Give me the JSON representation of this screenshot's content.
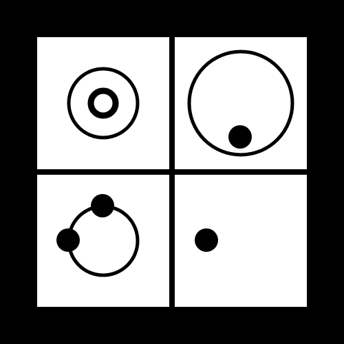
{
  "colors": {
    "background": "#000000",
    "panel": "#ffffff",
    "ink": "#000000"
  },
  "panels": [
    {
      "name": "panel-top-left",
      "motif": "concentric-rings"
    },
    {
      "name": "panel-top-right",
      "motif": "large-ring-with-inner-dot"
    },
    {
      "name": "panel-bottom-left",
      "motif": "ring-with-two-dots"
    },
    {
      "name": "panel-bottom-right",
      "motif": "single-dot"
    }
  ]
}
